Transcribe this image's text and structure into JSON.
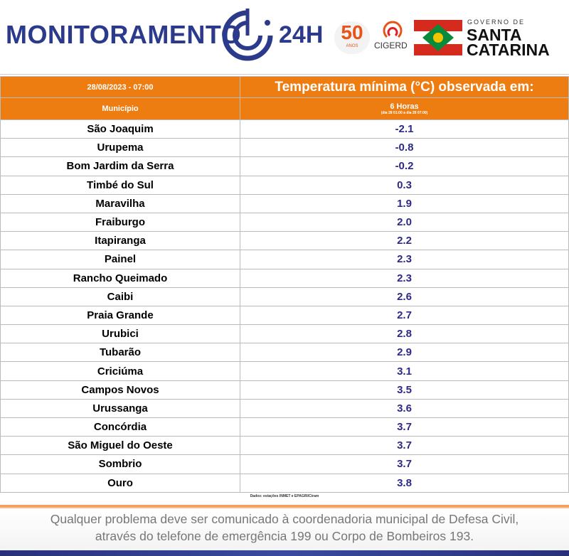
{
  "header": {
    "title": "MONITORAMENTO",
    "title_suffix": "24H",
    "badge": "50",
    "badge_sub": "ANOS",
    "cigerd": "CIGERD",
    "gov_label": "GOVERNO DE",
    "gov_name_1": "SANTA",
    "gov_name_2": "CATARINA"
  },
  "table": {
    "date": "28/08/2023 - 07:00",
    "title": "Temperatura mínima (°C) observada em:",
    "col_municipio": "Município",
    "col_period": "6 Horas",
    "col_period_note": "(dia 28 01:00 a dia 28 07:00)",
    "rows": [
      [
        "São Joaquim",
        "-2.1"
      ],
      [
        "Urupema",
        "-0.8"
      ],
      [
        "Bom Jardim da Serra",
        "-0.2"
      ],
      [
        "Timbé do Sul",
        "0.3"
      ],
      [
        "Maravilha",
        "1.9"
      ],
      [
        "Fraiburgo",
        "2.0"
      ],
      [
        "Itapiranga",
        "2.2"
      ],
      [
        "Painel",
        "2.3"
      ],
      [
        "Rancho Queimado",
        "2.3"
      ],
      [
        "Caibi",
        "2.6"
      ],
      [
        "Praia Grande",
        "2.7"
      ],
      [
        "Urubici",
        "2.8"
      ],
      [
        "Tubarão",
        "2.9"
      ],
      [
        "Criciúma",
        "3.1"
      ],
      [
        "Campos Novos",
        "3.5"
      ],
      [
        "Urussanga",
        "3.6"
      ],
      [
        "Concórdia",
        "3.7"
      ],
      [
        "São Miguel do Oeste",
        "3.7"
      ],
      [
        "Sombrio",
        "3.7"
      ],
      [
        "Ouro",
        "3.8"
      ]
    ],
    "source": "Dados: estações INMET e EPAGRI/Ciram"
  },
  "footer": {
    "line_1": "Qualquer problema deve ser comunicado à coordenadoria municipal de Defesa Civil,",
    "line_2": "através do telefone de emergência 199 ou Corpo de Bombeiros 193."
  }
}
